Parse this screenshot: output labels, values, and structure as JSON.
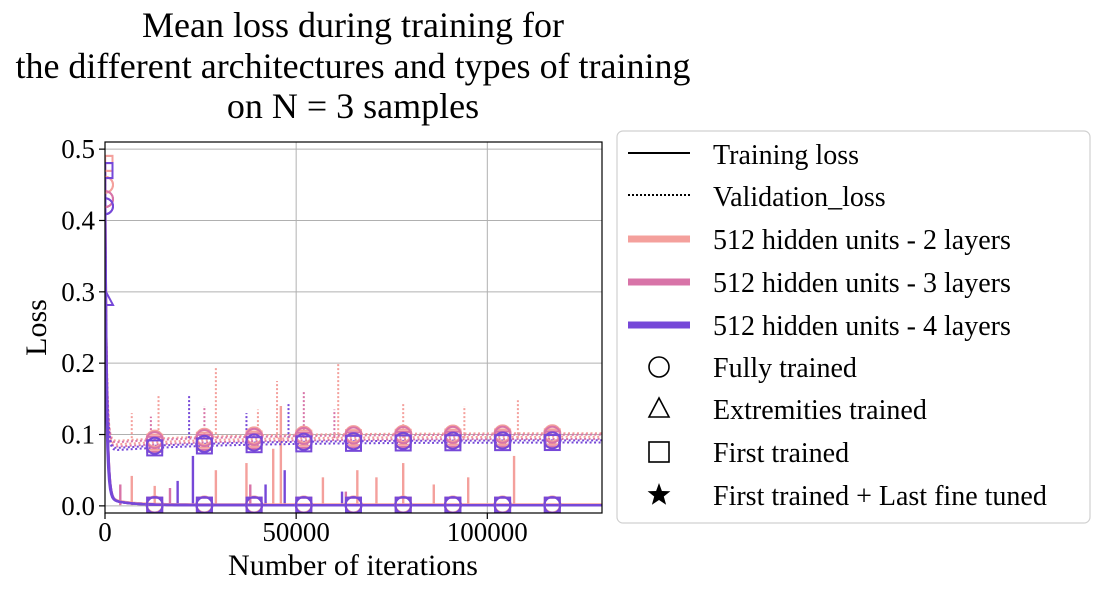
{
  "chart_data": {
    "type": "line",
    "title": [
      "Mean loss during training for",
      "the different architectures and types of training",
      "on N = 3 samples"
    ],
    "xlabel": "Number of iterations",
    "ylabel": "Loss",
    "xlim": [
      0,
      130000
    ],
    "ylim": [
      -0.01,
      0.51
    ],
    "xticks": [
      0,
      50000,
      100000
    ],
    "xtick_labels": [
      "0",
      "50000",
      "100000"
    ],
    "yticks": [
      0.0,
      0.1,
      0.2,
      0.3,
      0.4,
      0.5
    ],
    "ytick_labels": [
      "0.0",
      "0.1",
      "0.2",
      "0.3",
      "0.4",
      "0.5"
    ],
    "grid": true,
    "legend_position": "outside-right",
    "legend": [
      {
        "label": "Training loss",
        "kind": "line",
        "dash": "solid",
        "color": "#000000"
      },
      {
        "label": "Validation_loss",
        "kind": "line",
        "dash": "dotted",
        "color": "#000000"
      },
      {
        "label": "512 hidden units - 2 layers",
        "kind": "band",
        "color": "#f4a09c"
      },
      {
        "label": "512 hidden units - 3 layers",
        "kind": "band",
        "color": "#d874a8"
      },
      {
        "label": "512 hidden units - 4 layers",
        "kind": "band",
        "color": "#7648d8"
      },
      {
        "label": "Fully trained",
        "kind": "marker",
        "marker": "circle"
      },
      {
        "label": "Extremities trained",
        "kind": "marker",
        "marker": "triangle"
      },
      {
        "label": "First trained",
        "kind": "marker",
        "marker": "square"
      },
      {
        "label": "First trained + Last fine tuned",
        "kind": "marker",
        "marker": "star"
      }
    ],
    "marker_x": [
      0,
      13000,
      26000,
      39000,
      52000,
      65000,
      78000,
      91000,
      104000,
      117000
    ],
    "series": [
      {
        "name": "512 hidden units - 2 layers",
        "training": "Fully trained",
        "loss": "train",
        "color": "#f4a09c",
        "marker": "circle",
        "start": 0.45,
        "plateau": 0.002
      },
      {
        "name": "512 hidden units - 2 layers",
        "training": "Fully trained",
        "loss": "validation",
        "color": "#f4a09c",
        "marker": "circle",
        "start": 0.45,
        "plateau": 0.102
      },
      {
        "name": "512 hidden units - 2 layers",
        "training": "First trained",
        "loss": "train",
        "color": "#f4a09c",
        "marker": "square",
        "start": 0.48,
        "plateau": 0.001
      },
      {
        "name": "512 hidden units - 2 layers",
        "training": "First trained",
        "loss": "validation",
        "color": "#f4a09c",
        "marker": "square",
        "start": 0.48,
        "plateau": 0.097
      },
      {
        "name": "512 hidden units - 3 layers",
        "training": "Fully trained",
        "loss": "train",
        "color": "#d874a8",
        "marker": "circle",
        "start": 0.43,
        "plateau": 0.001
      },
      {
        "name": "512 hidden units - 3 layers",
        "training": "Fully trained",
        "loss": "validation",
        "color": "#d874a8",
        "marker": "circle",
        "start": 0.43,
        "plateau": 0.1
      },
      {
        "name": "512 hidden units - 3 layers",
        "training": "First trained",
        "loss": "train",
        "color": "#d874a8",
        "marker": "square",
        "start": 0.47,
        "plateau": 0.001
      },
      {
        "name": "512 hidden units - 3 layers",
        "training": "First trained",
        "loss": "validation",
        "color": "#d874a8",
        "marker": "square",
        "start": 0.47,
        "plateau": 0.094
      },
      {
        "name": "512 hidden units - 4 layers",
        "training": "Fully trained",
        "loss": "train",
        "color": "#7648d8",
        "marker": "circle",
        "start": 0.42,
        "plateau": 0.001
      },
      {
        "name": "512 hidden units - 4 layers",
        "training": "Fully trained",
        "loss": "validation",
        "color": "#7648d8",
        "marker": "circle",
        "start": 0.42,
        "plateau": 0.092
      },
      {
        "name": "512 hidden units - 4 layers",
        "training": "Extremities trained",
        "loss": "train",
        "color": "#7648d8",
        "marker": "triangle",
        "start": 0.29,
        "plateau": 0.001
      },
      {
        "name": "512 hidden units - 4 layers",
        "training": "First trained",
        "loss": "train",
        "color": "#7648d8",
        "marker": "square",
        "start": 0.47,
        "plateau": 0.001
      },
      {
        "name": "512 hidden units - 4 layers",
        "training": "First trained",
        "loss": "validation",
        "color": "#7648d8",
        "marker": "square",
        "start": 0.47,
        "plateau": 0.089
      }
    ],
    "spikes": [
      {
        "x": 7000,
        "y": 0.042,
        "color": "#f4a09c",
        "loss": "train"
      },
      {
        "x": 13000,
        "y": 0.028,
        "color": "#f4a09c",
        "loss": "train"
      },
      {
        "x": 29000,
        "y": 0.05,
        "color": "#f4a09c",
        "loss": "train"
      },
      {
        "x": 37000,
        "y": 0.06,
        "color": "#f4a09c",
        "loss": "train"
      },
      {
        "x": 44000,
        "y": 0.08,
        "color": "#f4a09c",
        "loss": "train"
      },
      {
        "x": 46000,
        "y": 0.14,
        "color": "#f4a09c",
        "loss": "train"
      },
      {
        "x": 57000,
        "y": 0.04,
        "color": "#f4a09c",
        "loss": "train"
      },
      {
        "x": 66000,
        "y": 0.05,
        "color": "#f4a09c",
        "loss": "train"
      },
      {
        "x": 71000,
        "y": 0.04,
        "color": "#f4a09c",
        "loss": "train"
      },
      {
        "x": 78000,
        "y": 0.06,
        "color": "#f4a09c",
        "loss": "train"
      },
      {
        "x": 86000,
        "y": 0.03,
        "color": "#f4a09c",
        "loss": "train"
      },
      {
        "x": 95000,
        "y": 0.04,
        "color": "#f4a09c",
        "loss": "train"
      },
      {
        "x": 107000,
        "y": 0.07,
        "color": "#f4a09c",
        "loss": "train"
      },
      {
        "x": 4000,
        "y": 0.03,
        "color": "#d874a8",
        "loss": "train"
      },
      {
        "x": 17000,
        "y": 0.025,
        "color": "#d874a8",
        "loss": "train"
      },
      {
        "x": 38000,
        "y": 0.03,
        "color": "#d874a8",
        "loss": "train"
      },
      {
        "x": 63000,
        "y": 0.02,
        "color": "#d874a8",
        "loss": "train"
      },
      {
        "x": 19000,
        "y": 0.035,
        "color": "#7648d8",
        "loss": "train"
      },
      {
        "x": 23000,
        "y": 0.07,
        "color": "#7648d8",
        "loss": "train"
      },
      {
        "x": 42000,
        "y": 0.03,
        "color": "#7648d8",
        "loss": "train"
      },
      {
        "x": 47000,
        "y": 0.05,
        "color": "#7648d8",
        "loss": "train"
      },
      {
        "x": 62000,
        "y": 0.02,
        "color": "#7648d8",
        "loss": "train"
      },
      {
        "x": 14000,
        "y": 0.155,
        "color": "#f4a09c",
        "loss": "validation"
      },
      {
        "x": 29000,
        "y": 0.195,
        "color": "#f4a09c",
        "loss": "validation"
      },
      {
        "x": 45000,
        "y": 0.175,
        "color": "#f4a09c",
        "loss": "validation"
      },
      {
        "x": 61000,
        "y": 0.2,
        "color": "#f4a09c",
        "loss": "validation"
      },
      {
        "x": 78000,
        "y": 0.145,
        "color": "#f4a09c",
        "loss": "validation"
      },
      {
        "x": 94000,
        "y": 0.14,
        "color": "#f4a09c",
        "loss": "validation"
      },
      {
        "x": 108000,
        "y": 0.148,
        "color": "#f4a09c",
        "loss": "validation"
      },
      {
        "x": 7000,
        "y": 0.13,
        "color": "#f4a09c",
        "loss": "validation"
      },
      {
        "x": 40000,
        "y": 0.135,
        "color": "#f4a09c",
        "loss": "validation"
      },
      {
        "x": 12000,
        "y": 0.125,
        "color": "#d874a8",
        "loss": "validation"
      },
      {
        "x": 26000,
        "y": 0.14,
        "color": "#d874a8",
        "loss": "validation"
      },
      {
        "x": 52000,
        "y": 0.16,
        "color": "#d874a8",
        "loss": "validation"
      },
      {
        "x": 60000,
        "y": 0.135,
        "color": "#d874a8",
        "loss": "validation"
      },
      {
        "x": 22000,
        "y": 0.155,
        "color": "#7648d8",
        "loss": "validation"
      },
      {
        "x": 37000,
        "y": 0.13,
        "color": "#7648d8",
        "loss": "validation"
      },
      {
        "x": 48000,
        "y": 0.145,
        "color": "#7648d8",
        "loss": "validation"
      }
    ]
  }
}
